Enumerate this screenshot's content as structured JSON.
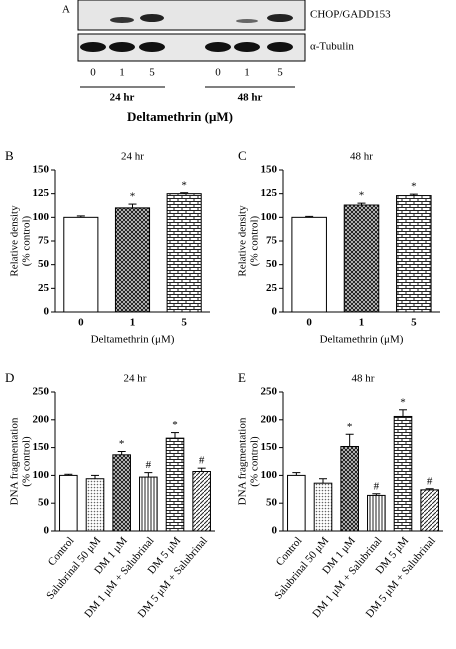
{
  "blot": {
    "panel": "A",
    "rows": [
      "CHOP/GADD153",
      "α-Tubulin"
    ],
    "lanes": [
      "0",
      "1",
      "5",
      "0",
      "1",
      "5"
    ],
    "groups": [
      "24 hr",
      "48 hr"
    ],
    "xlabel": "Deltamethrin (μM)"
  },
  "chart_data": [
    {
      "type": "bar",
      "panel": "B",
      "title": "24 hr",
      "ylabel": [
        "Relative density",
        "(% control)"
      ],
      "xlabel": "Deltamethrin (μM)",
      "categories": [
        "0",
        "1",
        "5"
      ],
      "values": [
        100,
        110,
        125
      ],
      "errors": [
        1.5,
        4,
        1
      ],
      "markers": [
        null,
        "*",
        "*"
      ],
      "ylim": [
        0,
        150
      ],
      "yticks": [
        0,
        25,
        50,
        75,
        100,
        125,
        150
      ]
    },
    {
      "type": "bar",
      "panel": "C",
      "title": "48 hr",
      "ylabel": [
        "Relative density",
        "(% control)"
      ],
      "xlabel": "Deltamethrin (μM)",
      "categories": [
        "0",
        "1",
        "5"
      ],
      "values": [
        100,
        113,
        123
      ],
      "errors": [
        1,
        2,
        1.5
      ],
      "markers": [
        null,
        "*",
        "*"
      ],
      "ylim": [
        0,
        150
      ],
      "yticks": [
        0,
        25,
        50,
        75,
        100,
        125,
        150
      ]
    },
    {
      "type": "bar",
      "panel": "D",
      "title": "24 hr",
      "ylabel": [
        "DNA fragmentation",
        "(% control)"
      ],
      "categories": [
        "Control",
        "Salubrinal 50 μM",
        "DM 1 μM",
        "DM 1 μM + Salubrinal",
        "DM 5 μM",
        "DM 5 μM + Salubrinal"
      ],
      "values": [
        100,
        94,
        137,
        97,
        167,
        107
      ],
      "errors": [
        2,
        6,
        6,
        8,
        10,
        6
      ],
      "markers": [
        null,
        null,
        "*",
        "#",
        "*",
        "#"
      ],
      "ylim": [
        0,
        250
      ],
      "yticks": [
        0,
        50,
        100,
        150,
        200,
        250
      ]
    },
    {
      "type": "bar",
      "panel": "E",
      "title": "48 hr",
      "ylabel": [
        "DNA fragmentation",
        "(% control)"
      ],
      "categories": [
        "Control",
        "Salubrinal 50 μM",
        "DM 1 μM",
        "DM 1 μM + Salubrinal",
        "DM 5 μM",
        "DM 5 μM + Salubrinal"
      ],
      "values": [
        100,
        86,
        152,
        64,
        206,
        74
      ],
      "errors": [
        5,
        8,
        22,
        3,
        12,
        2
      ],
      "markers": [
        null,
        null,
        "*",
        "#",
        "*",
        "#"
      ],
      "ylim": [
        0,
        250
      ],
      "yticks": [
        0,
        50,
        100,
        150,
        200,
        250
      ]
    }
  ]
}
